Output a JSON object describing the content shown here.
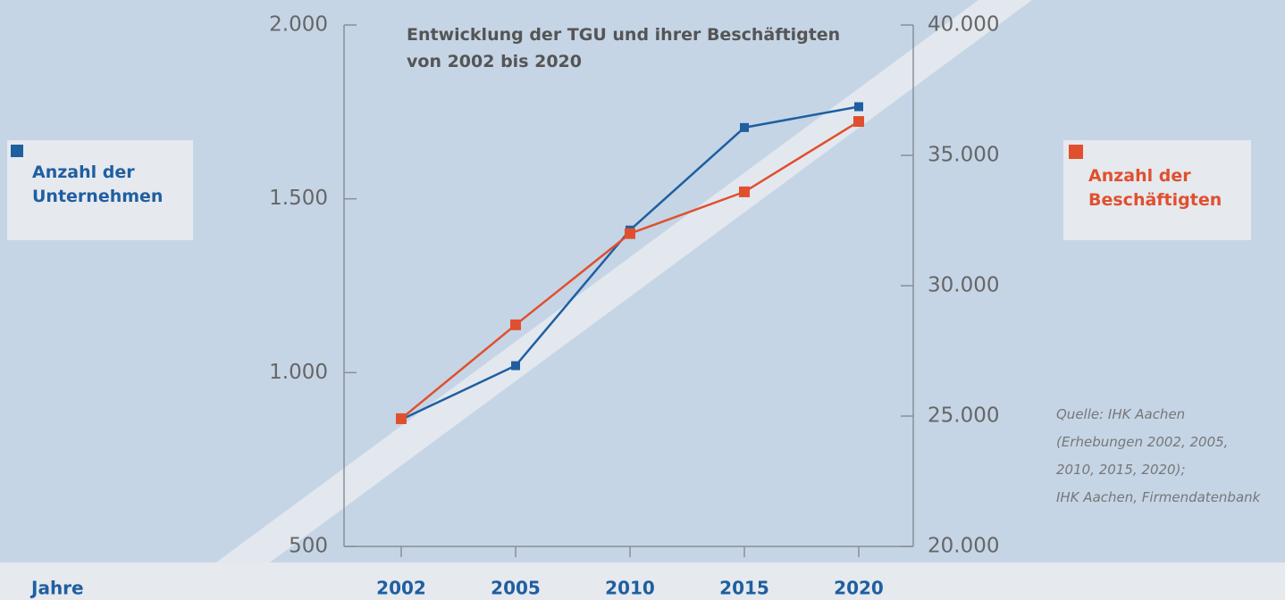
{
  "chart_data": {
    "type": "line",
    "title": "Entwicklung der TGU und ihrer Beschäftigten von 2002 bis 2020",
    "x_label": "Jahre",
    "categories": [
      "2002",
      "2005",
      "2010",
      "2015",
      "2020"
    ],
    "series": [
      {
        "name": "Anzahl der Unternehmen",
        "color": "#1f5fa0",
        "values": [
          865,
          1020,
          1410,
          1705,
          1765
        ]
      },
      {
        "name": "Anzahl der Beschäftigten",
        "color": "#e0502e",
        "axis": "y2",
        "values": [
          24900,
          28500,
          32000,
          33600,
          36300
        ]
      }
    ],
    "ylim": [
      500,
      2000
    ],
    "yticks": [
      500,
      {
        "value": 1000,
        "label": "1.000"
      },
      {
        "value": 1500,
        "label": "1.500"
      },
      {
        "value": 2000,
        "label": "2.000"
      }
    ],
    "y2lim": [
      20000,
      40000
    ],
    "y2ticks": [
      {
        "value": 20000,
        "label": "20.000"
      },
      {
        "value": 25000,
        "label": "25.000"
      },
      {
        "value": 30000,
        "label": "30.000"
      },
      {
        "value": 35000,
        "label": "35.000"
      },
      {
        "value": 40000,
        "label": "40.000"
      }
    ],
    "source": [
      "Quelle: IHK Aachen",
      "(Erhebungen 2002, 2005,",
      "2010, 2015, 2020);",
      "IHK Aachen, Firmendatenbank"
    ]
  }
}
